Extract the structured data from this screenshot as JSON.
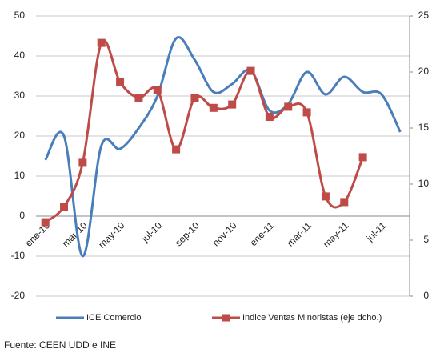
{
  "chart_data": {
    "type": "line",
    "categories": [
      "ene-10",
      null,
      "mar-10",
      null,
      "may-10",
      null,
      "jul-10",
      null,
      "sep-10",
      null,
      "nov-10",
      null,
      "ene-11",
      null,
      "mar-11",
      null,
      "may-11",
      null,
      "jul-11",
      null
    ],
    "series": [
      {
        "name": "ICE Comercio",
        "color": "#4a7ebb",
        "axis": "y",
        "values": [
          14,
          20,
          -10,
          17.6,
          16.8,
          22,
          30,
          44.4,
          39,
          31,
          33,
          36.4,
          26.4,
          28,
          36,
          30.4,
          34.8,
          31,
          30.4,
          21
        ]
      },
      {
        "name": "Indice Ventas Minoristas (eje dcho.)",
        "color": "#be4b48",
        "axis": "y2",
        "marker": "square",
        "values": [
          6.6,
          8.0,
          11.9,
          22.6,
          19.1,
          17.7,
          18.4,
          13.1,
          17.7,
          16.8,
          17.1,
          20.1,
          16.0,
          16.9,
          16.4,
          8.9,
          8.4,
          12.4,
          null,
          null
        ]
      }
    ],
    "ylim": [
      -20,
      50
    ],
    "yticks": [
      -20,
      -10,
      0,
      10,
      20,
      30,
      40,
      50
    ],
    "y2lim": [
      0,
      25
    ],
    "y2ticks": [
      0,
      5,
      10,
      15,
      20,
      25
    ],
    "grid": true,
    "legend": "bottom",
    "source": "Fuente: CEEN UDD e INE"
  }
}
